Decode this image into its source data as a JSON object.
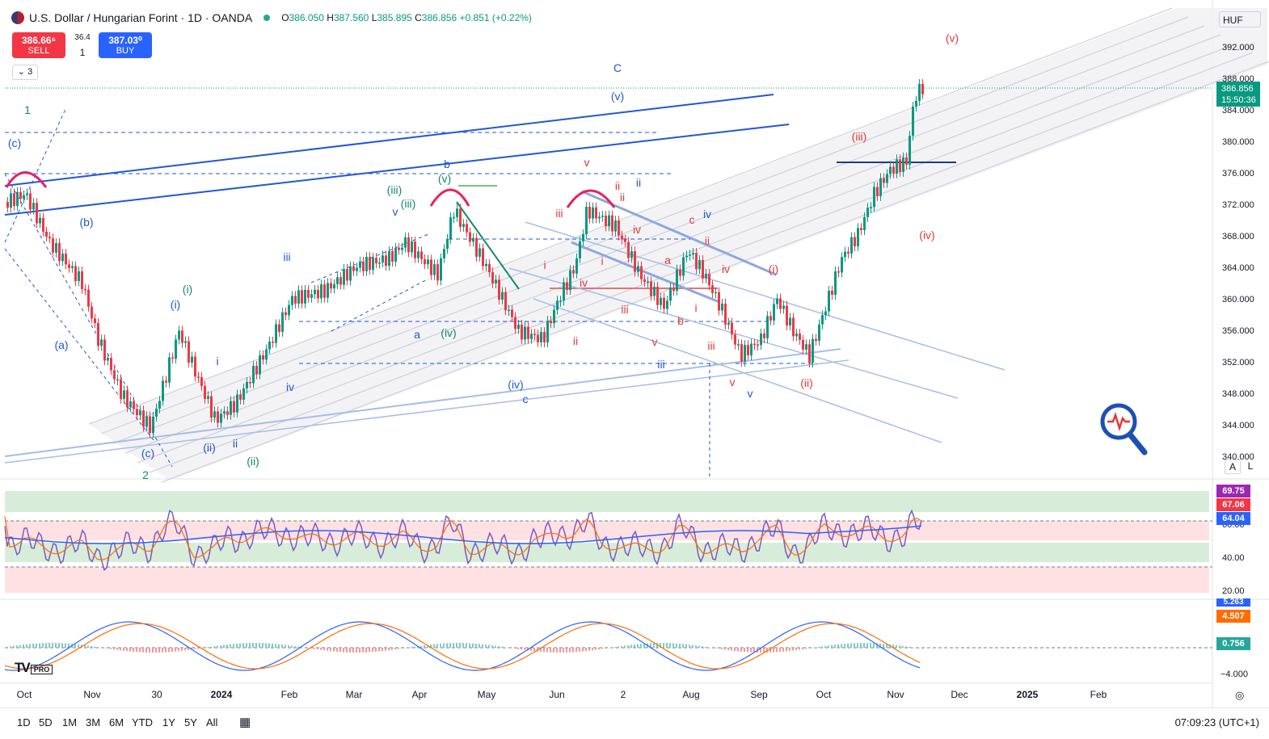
{
  "header": {
    "title": "U.S. Dollar / Hungarian Forint · 1D · OANDA",
    "open_label": "O",
    "open": "386.050",
    "high_label": "H",
    "high": "387.560",
    "low_label": "L",
    "low": "385.895",
    "close_label": "C",
    "close": "386.856",
    "change": "+0.851 (+0.22%)"
  },
  "trade": {
    "sell_price": "386.66⁶",
    "sell_label": "SELL",
    "buy_price": "387.03⁰",
    "buy_label": "BUY",
    "spread": "36.4",
    "quantity": "1"
  },
  "indicators_toggle": "3",
  "currency": "HUF",
  "price_axis": {
    "ticks": [
      "392.000",
      "388.000",
      "384.000",
      "380.000",
      "376.000",
      "372.000",
      "368.000",
      "364.000",
      "360.000",
      "356.000",
      "352.000",
      "348.000",
      "344.000",
      "340.000"
    ],
    "last_price": "386.856",
    "countdown": "15:50:36",
    "auto_label": "A",
    "log_label": "L"
  },
  "rsi": {
    "ticks": [
      "60.00",
      "40.00",
      "20.00"
    ],
    "label_top": "69.75",
    "label_mid": "67.06",
    "label_low": "64.04",
    "color_top": "#9c27b0",
    "color_mid": "#f23645",
    "color_low": "#2962ff"
  },
  "macd": {
    "ticks": [
      "−4.000"
    ],
    "label_macd": "5.263",
    "label_signal": "4.507",
    "label_hist": "0.756"
  },
  "time_axis": {
    "labels": [
      "Oct",
      "Nov",
      "30",
      "2024",
      "Feb",
      "Mar",
      "Apr",
      "May",
      "Jun",
      "2",
      "Aug",
      "Sep",
      "Oct",
      "Nov",
      "Dec",
      "2025",
      "Feb"
    ]
  },
  "timeframes": [
    "1D",
    "5D",
    "1M",
    "3M",
    "6M",
    "YTD",
    "1Y",
    "5Y",
    "All"
  ],
  "clock": "07:09:23 (UTC+1)",
  "logo": {
    "mark": "TV",
    "badge": "PRO"
  },
  "wave_labels": {
    "green": [
      "1",
      "(i)",
      "(iii)",
      "(iii)",
      "(v)",
      "(iv)",
      "(ii)",
      "2"
    ],
    "blue": [
      "(c)",
      "(b)",
      "(a)",
      "(c)",
      "(i)",
      "(ii)",
      "iii",
      "iv",
      "i",
      "ii",
      "b",
      "a",
      "c",
      "(iv)",
      "iii",
      "v",
      "(v)",
      "C",
      "ii",
      "iv",
      "v"
    ],
    "red": [
      "(v)",
      "(iii)",
      "(iv)",
      "(i)",
      "(ii)",
      "v",
      "ii",
      "iii",
      "i",
      "iv",
      "iii",
      "i",
      "ii",
      "iv",
      "c",
      "ii",
      "iv",
      "a",
      "b",
      "v",
      "i",
      "iii",
      "v",
      "ii"
    ]
  },
  "colors": {
    "up": "#089981",
    "down": "#f23645",
    "rsi": "#7e57c2",
    "ma_blue": "#2962ff",
    "ma_orange": "#ff6d00"
  }
}
